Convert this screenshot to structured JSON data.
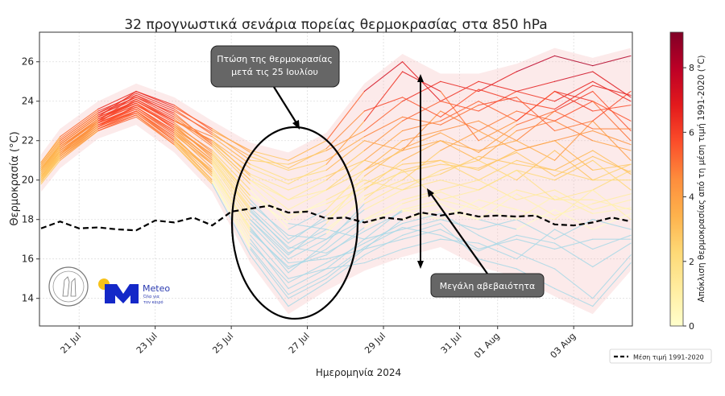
{
  "chart_data": {
    "type": "line",
    "title": "32 προγνωστικά σενάρια πορείας θερμοκρασίας στα 850 hPa",
    "xlabel": "Ημερομηνία 2024",
    "ylabel": "Θερμοκρασία (°C)",
    "xlim": [
      "2024-07-19T23:00",
      "2024-08-04T13:00"
    ],
    "ylim": [
      12.6,
      27.5
    ],
    "grid": true,
    "yticks": [
      14,
      16,
      18,
      20,
      22,
      24,
      26
    ],
    "xticks": [
      {
        "date": "2024-07-21",
        "label": "21 Jul"
      },
      {
        "date": "2024-07-23",
        "label": "23 Jul"
      },
      {
        "date": "2024-07-25",
        "label": "25 Jul"
      },
      {
        "date": "2024-07-27",
        "label": "27 Jul"
      },
      {
        "date": "2024-07-29",
        "label": "29 Jul"
      },
      {
        "date": "2024-07-31",
        "label": "31 Jul"
      },
      {
        "date": "2024-08-01",
        "label": "01 Aug"
      },
      {
        "date": "2024-08-03",
        "label": "03 Aug"
      }
    ],
    "member_times": [
      "2024-07-20T00:00",
      "2024-07-20T12:00",
      "2024-07-21T12:00",
      "2024-07-22T12:00",
      "2024-07-23T12:00",
      "2024-07-24T12:00",
      "2024-07-25T12:00",
      "2024-07-26T12:00",
      "2024-07-27T12:00",
      "2024-07-28T12:00",
      "2024-07-29T12:00",
      "2024-07-30T12:00",
      "2024-07-31T12:00",
      "2024-08-01T12:00",
      "2024-08-02T12:00",
      "2024-08-03T12:00",
      "2024-08-04T12:00"
    ],
    "members": [
      [
        20.0,
        21.3,
        23.0,
        24.3,
        23.5,
        22.4,
        21.0,
        20.8,
        21.5,
        22.5,
        24.0,
        25.0,
        24.5,
        25.5,
        26.3,
        25.8,
        26.3
      ],
      [
        20.5,
        21.8,
        23.2,
        24.5,
        23.8,
        22.5,
        21.5,
        21.0,
        22.0,
        24.5,
        26.0,
        24.0,
        25.0,
        24.5,
        25.0,
        25.5,
        24.2
      ],
      [
        20.2,
        21.4,
        22.9,
        24.1,
        23.0,
        22.0,
        20.2,
        19.0,
        20.0,
        21.5,
        23.0,
        24.0,
        23.5,
        24.5,
        24.0,
        25.0,
        24.0
      ],
      [
        20.8,
        22.0,
        23.4,
        24.2,
        23.4,
        21.8,
        20.0,
        18.5,
        19.5,
        21.0,
        22.5,
        23.0,
        24.0,
        23.0,
        24.5,
        24.0,
        23.0
      ],
      [
        19.9,
        21.2,
        22.7,
        23.8,
        22.8,
        21.5,
        19.5,
        17.5,
        18.5,
        20.5,
        22.0,
        22.5,
        23.0,
        22.0,
        23.5,
        24.5,
        22.5
      ],
      [
        20.6,
        21.7,
        23.1,
        24.0,
        23.0,
        22.2,
        20.8,
        20.0,
        20.5,
        22.0,
        21.5,
        22.0,
        21.0,
        22.5,
        23.0,
        22.0,
        21.5
      ],
      [
        20.4,
        21.6,
        23.0,
        23.9,
        22.6,
        21.3,
        19.0,
        17.0,
        18.0,
        19.5,
        21.0,
        22.0,
        21.5,
        22.0,
        21.0,
        23.0,
        21.0
      ],
      [
        20.1,
        21.5,
        22.8,
        23.7,
        22.5,
        21.0,
        18.5,
        16.5,
        17.5,
        19.0,
        20.5,
        21.0,
        20.5,
        21.5,
        22.0,
        20.5,
        20.8
      ],
      [
        20.7,
        21.9,
        23.3,
        24.1,
        23.1,
        21.7,
        19.8,
        18.0,
        19.0,
        20.0,
        19.5,
        20.5,
        21.0,
        20.0,
        21.5,
        20.0,
        20.0
      ],
      [
        20.3,
        21.5,
        22.9,
        23.6,
        22.3,
        20.8,
        18.0,
        16.0,
        17.0,
        18.5,
        19.5,
        20.0,
        19.5,
        20.5,
        20.0,
        21.0,
        19.5
      ],
      [
        20.0,
        21.1,
        22.6,
        23.5,
        22.1,
        20.5,
        17.5,
        15.5,
        16.5,
        18.0,
        19.0,
        19.5,
        20.0,
        19.0,
        19.5,
        18.5,
        19.0
      ],
      [
        20.9,
        22.1,
        23.5,
        24.3,
        23.3,
        21.9,
        20.3,
        19.5,
        20.2,
        21.0,
        20.5,
        19.0,
        19.5,
        20.5,
        19.0,
        19.5,
        20.5
      ],
      [
        20.2,
        21.3,
        22.8,
        23.4,
        22.0,
        20.2,
        17.0,
        14.5,
        15.5,
        17.0,
        18.5,
        19.0,
        18.5,
        19.5,
        19.0,
        19.0,
        18.5
      ],
      [
        20.5,
        21.6,
        23.0,
        23.8,
        22.7,
        21.2,
        18.8,
        17.2,
        17.0,
        18.0,
        18.5,
        18.0,
        19.0,
        18.5,
        18.0,
        19.5,
        18.0
      ],
      [
        19.8,
        21.0,
        22.5,
        23.3,
        21.9,
        20.0,
        16.5,
        14.0,
        15.0,
        16.5,
        18.0,
        18.5,
        18.0,
        17.5,
        18.5,
        17.5,
        18.3
      ],
      [
        20.6,
        21.8,
        23.2,
        24.0,
        22.9,
        21.4,
        19.2,
        17.8,
        17.5,
        17.0,
        17.5,
        18.0,
        17.5,
        18.0,
        17.0,
        18.0,
        17.5
      ],
      [
        20.3,
        21.5,
        22.9,
        23.7,
        22.4,
        20.6,
        17.8,
        15.8,
        16.0,
        16.5,
        17.0,
        17.5,
        16.5,
        17.0,
        16.5,
        17.0,
        17.0
      ],
      [
        20.1,
        21.3,
        22.7,
        23.5,
        22.2,
        20.3,
        17.2,
        15.0,
        15.5,
        15.8,
        16.5,
        17.0,
        16.8,
        16.0,
        17.5,
        16.5,
        17.2
      ],
      [
        20.7,
        21.9,
        23.3,
        24.2,
        23.2,
        21.8,
        20.0,
        19.0,
        19.5,
        20.5,
        21.5,
        23.5,
        22.5,
        23.5,
        23.0,
        24.0,
        22.0
      ],
      [
        20.4,
        21.6,
        23.1,
        24.0,
        23.0,
        22.0,
        20.6,
        19.8,
        20.8,
        23.0,
        25.5,
        24.5,
        22.0,
        23.0,
        24.5,
        23.5,
        23.8
      ],
      [
        20.2,
        21.4,
        22.8,
        23.6,
        22.4,
        20.9,
        18.2,
        16.3,
        17.3,
        19.2,
        20.0,
        21.5,
        22.5,
        21.5,
        22.0,
        22.5,
        21.8
      ],
      [
        20.0,
        21.2,
        22.6,
        23.4,
        22.0,
        20.4,
        17.6,
        15.3,
        16.8,
        18.8,
        19.8,
        20.3,
        21.2,
        20.8,
        20.5,
        21.5,
        20.3
      ],
      [
        20.8,
        22.0,
        23.4,
        24.4,
        23.6,
        22.3,
        21.2,
        20.5,
        21.0,
        22.2,
        23.2,
        22.8,
        23.8,
        24.2,
        22.5,
        23.0,
        24.5
      ],
      [
        20.5,
        21.7,
        23.1,
        23.9,
        22.8,
        21.1,
        18.6,
        16.8,
        18.2,
        19.8,
        20.8,
        21.0,
        20.0,
        21.0,
        20.5,
        20.0,
        20.8
      ],
      [
        20.3,
        21.4,
        22.8,
        23.5,
        22.0,
        20.0,
        16.8,
        14.8,
        15.8,
        16.8,
        17.8,
        18.3,
        17.2,
        16.3,
        15.5,
        14.0,
        16.2
      ],
      [
        19.9,
        21.1,
        22.5,
        23.2,
        21.8,
        19.8,
        16.2,
        13.6,
        14.8,
        16.2,
        17.2,
        17.8,
        16.0,
        15.5,
        14.5,
        13.6,
        15.8
      ],
      [
        20.6,
        21.8,
        23.2,
        23.9,
        22.6,
        21.0,
        18.4,
        16.6,
        16.3,
        17.4,
        18.4,
        18.8,
        18.0,
        19.3,
        18.2,
        18.8,
        19.3
      ],
      [
        20.2,
        21.3,
        22.7,
        23.5,
        22.2,
        20.4,
        17.4,
        15.6,
        16.2,
        17.6,
        18.8,
        19.4,
        18.6,
        18.0,
        19.2,
        18.3,
        18.6
      ],
      [
        20.9,
        22.2,
        23.6,
        24.5,
        23.7,
        22.6,
        21.4,
        20.6,
        21.6,
        23.5,
        24.2,
        23.2,
        24.6,
        24.0,
        23.6,
        24.8,
        24.3
      ],
      [
        20.4,
        21.5,
        22.9,
        23.7,
        22.5,
        20.8,
        18.0,
        16.2,
        17.8,
        20.2,
        21.6,
        22.4,
        21.4,
        22.8,
        23.5,
        22.6,
        22.6
      ],
      [
        20.1,
        21.2,
        22.6,
        23.3,
        21.8,
        19.9,
        16.6,
        14.2,
        15.2,
        16.6,
        17.6,
        17.2,
        16.4,
        17.2,
        16.8,
        15.6,
        16.8
      ],
      [
        20.5,
        21.7,
        23.0,
        23.8,
        22.7,
        21.3,
        19.2,
        18.2,
        18.8,
        19.6,
        20.4,
        20.8,
        20.6,
        21.4,
        20.2,
        21.2,
        20.4
      ]
    ],
    "climatology": {
      "name": "Μέση τιμή 1991-2020",
      "style": "dashed",
      "color": "#000000",
      "times": [
        "2024-07-20T00:00",
        "2024-07-20T12:00",
        "2024-07-21T00:00",
        "2024-07-21T12:00",
        "2024-07-22T00:00",
        "2024-07-22T12:00",
        "2024-07-23T00:00",
        "2024-07-23T12:00",
        "2024-07-24T00:00",
        "2024-07-24T12:00",
        "2024-07-25T00:00",
        "2024-07-25T12:00",
        "2024-07-26T00:00",
        "2024-07-26T12:00",
        "2024-07-27T00:00",
        "2024-07-27T12:00",
        "2024-07-28T00:00",
        "2024-07-28T12:00",
        "2024-07-29T00:00",
        "2024-07-29T12:00",
        "2024-07-30T00:00",
        "2024-07-30T12:00",
        "2024-07-31T00:00",
        "2024-07-31T12:00",
        "2024-08-01T00:00",
        "2024-08-01T12:00",
        "2024-08-02T00:00",
        "2024-08-02T12:00",
        "2024-08-03T00:00",
        "2024-08-03T12:00",
        "2024-08-04T00:00",
        "2024-08-04T12:00"
      ],
      "values": [
        17.55,
        17.9,
        17.55,
        17.6,
        17.5,
        17.45,
        17.95,
        17.85,
        18.1,
        17.7,
        18.4,
        18.55,
        18.7,
        18.35,
        18.4,
        18.05,
        18.1,
        17.85,
        18.1,
        18.0,
        18.35,
        18.2,
        18.35,
        18.15,
        18.2,
        18.15,
        18.2,
        17.75,
        17.7,
        17.85,
        18.1,
        17.9
      ]
    },
    "envelope_color": "#f4b8b8",
    "negative_anomaly_color": "#a8d8e6",
    "colorbar": {
      "label": "Απόκλιση θερμοκρασίας από τη μέση τιμή 1991-2020 (°C)",
      "range": [
        0,
        9.1
      ],
      "ticks": [
        0,
        2,
        4,
        6,
        8
      ],
      "colormap": [
        "#ffffcc",
        "#ffeda0",
        "#fed976",
        "#feb24c",
        "#fd8d3c",
        "#fc4e2a",
        "#e31a1c",
        "#bd0026",
        "#800026"
      ]
    },
    "legend": {
      "position": "bottom-right",
      "entries": [
        "Μέση τιμή 1991-2020"
      ]
    },
    "annotations": [
      {
        "text_lines": [
          "Πτώση της θερμοκρασίας",
          "μετά τις 25 Ιουλίου"
        ]
      },
      {
        "text_lines": [
          "Μεγάλη αβεβαιότητα"
        ]
      }
    ]
  },
  "logos": {
    "seal": "National Observatory of Athens",
    "meteo_name": "Meteo",
    "meteo_tagline": [
      "Όλα για",
      "τον καιρό"
    ],
    "meteo_color": "#1428c8",
    "sun_color": "#f7c21a"
  }
}
